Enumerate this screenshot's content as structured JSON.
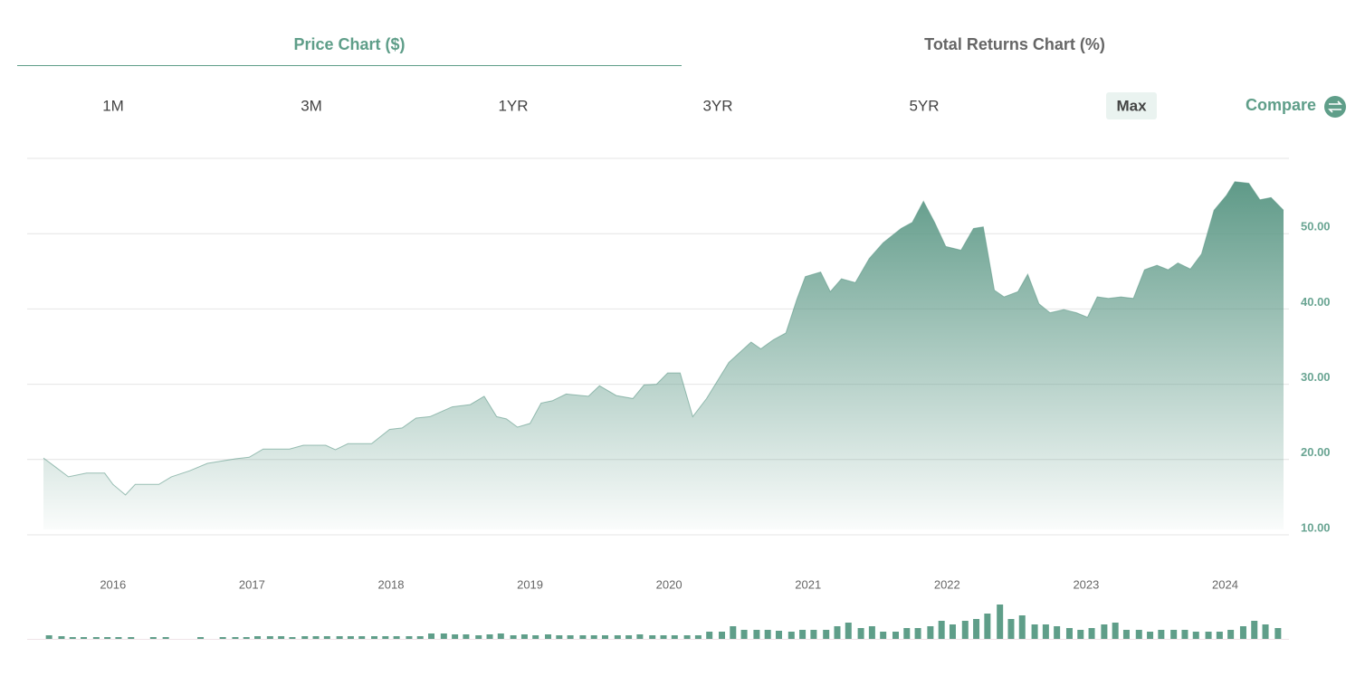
{
  "tabs": [
    {
      "label": "Price Chart ($)",
      "active": true
    },
    {
      "label": "Total Returns Chart (%)",
      "active": false
    }
  ],
  "ranges": [
    {
      "label": "1M",
      "active": false
    },
    {
      "label": "3M",
      "active": false
    },
    {
      "label": "1YR",
      "active": false
    },
    {
      "label": "3YR",
      "active": false
    },
    {
      "label": "5YR",
      "active": false
    },
    {
      "label": "Max",
      "active": true
    }
  ],
  "compare": "Compare",
  "chart_data": [
    {
      "type": "area",
      "color": "#5f9a88",
      "grid": true,
      "xlim": [
        2015.5,
        2024.42
      ],
      "xticks": [
        2016,
        2017,
        2018,
        2019,
        2020,
        2021,
        2022,
        2023,
        2024
      ],
      "ylim": [
        10,
        60
      ],
      "yticks": [
        {
          "value": 10,
          "label": "10.00"
        },
        {
          "value": 20,
          "label": "20.00"
        },
        {
          "value": 30,
          "label": "30.00"
        },
        {
          "value": 40,
          "label": "40.00"
        },
        {
          "value": 50,
          "label": "50.00"
        }
      ],
      "x": [
        2015.5,
        2015.58,
        2015.68,
        2015.81,
        2015.94,
        2016.0,
        2016.09,
        2016.16,
        2016.33,
        2016.42,
        2016.55,
        2016.68,
        2016.88,
        2016.98,
        2017.08,
        2017.27,
        2017.37,
        2017.53,
        2017.6,
        2017.69,
        2017.86,
        2017.99,
        2018.08,
        2018.18,
        2018.28,
        2018.44,
        2018.57,
        2018.67,
        2018.76,
        2018.83,
        2018.91,
        2019.0,
        2019.08,
        2019.16,
        2019.26,
        2019.42,
        2019.5,
        2019.62,
        2019.74,
        2019.82,
        2019.91,
        2019.99,
        2020.08,
        2020.17,
        2020.27,
        2020.43,
        2020.59,
        2020.66,
        2020.75,
        2020.84,
        2020.92,
        2020.98,
        2021.09,
        2021.16,
        2021.24,
        2021.34,
        2021.44,
        2021.54,
        2021.67,
        2021.75,
        2021.83,
        2021.91,
        2021.99,
        2022.1,
        2022.19,
        2022.26,
        2022.34,
        2022.41,
        2022.51,
        2022.58,
        2022.66,
        2022.74,
        2022.84,
        2022.93,
        2023.01,
        2023.08,
        2023.16,
        2023.25,
        2023.34,
        2023.42,
        2023.51,
        2023.59,
        2023.66,
        2023.75,
        2023.83,
        2023.92,
        2024.01,
        2024.07,
        2024.17,
        2024.25,
        2024.33,
        2024.42
      ],
      "values": [
        20.2,
        19.1,
        17.7,
        18.2,
        18.2,
        16.7,
        15.3,
        16.7,
        16.7,
        17.7,
        18.5,
        19.5,
        20.1,
        20.3,
        21.4,
        21.4,
        21.9,
        21.9,
        21.3,
        22.1,
        22.1,
        24.0,
        24.2,
        25.5,
        25.7,
        27.0,
        27.3,
        28.4,
        25.7,
        25.4,
        24.3,
        24.8,
        27.5,
        27.8,
        28.7,
        28.4,
        29.8,
        28.5,
        28.1,
        29.9,
        30.0,
        31.5,
        31.5,
        25.7,
        28.1,
        32.9,
        35.6,
        34.7,
        35.9,
        36.8,
        41.3,
        44.3,
        44.9,
        42.3,
        44.0,
        43.5,
        46.7,
        48.8,
        50.7,
        51.5,
        54.3,
        51.5,
        48.3,
        47.8,
        50.7,
        50.9,
        42.5,
        41.6,
        42.3,
        44.6,
        40.7,
        39.5,
        39.9,
        39.5,
        38.9,
        41.6,
        41.4,
        41.6,
        41.4,
        45.2,
        45.8,
        45.2,
        46.1,
        45.3,
        47.3,
        53.1,
        55.1,
        56.9,
        56.7,
        54.5,
        54.8,
        53.1
      ]
    },
    {
      "type": "bar",
      "color": "#5f9e89",
      "xlim": [
        2015.5,
        2024.42
      ],
      "ylim": [
        0,
        40
      ],
      "x": [
        2015.54,
        2015.63,
        2015.71,
        2015.79,
        2015.88,
        2015.96,
        2016.04,
        2016.13,
        2016.21,
        2016.29,
        2016.38,
        2016.46,
        2016.54,
        2016.63,
        2016.71,
        2016.79,
        2016.88,
        2016.96,
        2017.04,
        2017.13,
        2017.21,
        2017.29,
        2017.38,
        2017.46,
        2017.54,
        2017.63,
        2017.71,
        2017.79,
        2017.88,
        2017.96,
        2018.04,
        2018.13,
        2018.21,
        2018.29,
        2018.38,
        2018.46,
        2018.54,
        2018.63,
        2018.71,
        2018.79,
        2018.88,
        2018.96,
        2019.04,
        2019.13,
        2019.21,
        2019.29,
        2019.38,
        2019.46,
        2019.54,
        2019.63,
        2019.71,
        2019.79,
        2019.88,
        2019.96,
        2020.04,
        2020.13,
        2020.21,
        2020.29,
        2020.38,
        2020.46,
        2020.54,
        2020.63,
        2020.71,
        2020.79,
        2020.88,
        2020.96,
        2021.04,
        2021.13,
        2021.21,
        2021.29,
        2021.38,
        2021.46,
        2021.54,
        2021.63,
        2021.71,
        2021.79,
        2021.88,
        2021.96,
        2022.04,
        2022.13,
        2022.21,
        2022.29,
        2022.38,
        2022.46,
        2022.54,
        2022.63,
        2022.71,
        2022.79,
        2022.88,
        2022.96,
        2023.04,
        2023.13,
        2023.21,
        2023.29,
        2023.38,
        2023.46,
        2023.54,
        2023.63,
        2023.71,
        2023.79,
        2023.88,
        2023.96,
        2024.04,
        2024.13,
        2024.21,
        2024.29,
        2024.38
      ],
      "values": [
        4,
        3,
        2,
        2,
        2,
        2,
        2,
        2,
        0,
        2,
        2,
        0,
        0,
        2,
        0,
        2,
        2,
        2,
        3,
        3,
        3,
        2,
        3,
        3,
        3,
        3,
        3,
        3,
        3,
        3,
        3,
        3,
        3,
        6,
        6,
        5,
        5,
        4,
        5,
        6,
        4,
        5,
        4,
        5,
        4,
        4,
        4,
        4,
        4,
        4,
        4,
        5,
        4,
        4,
        4,
        4,
        4,
        8,
        8,
        14,
        10,
        10,
        10,
        9,
        8,
        10,
        10,
        10,
        14,
        18,
        12,
        14,
        8,
        8,
        12,
        12,
        14,
        20,
        16,
        20,
        22,
        28,
        38,
        22,
        26,
        16,
        16,
        14,
        12,
        10,
        12,
        16,
        18,
        10,
        10,
        8,
        10,
        10,
        10,
        8,
        8,
        8,
        10,
        14,
        20,
        16,
        12
      ]
    }
  ]
}
